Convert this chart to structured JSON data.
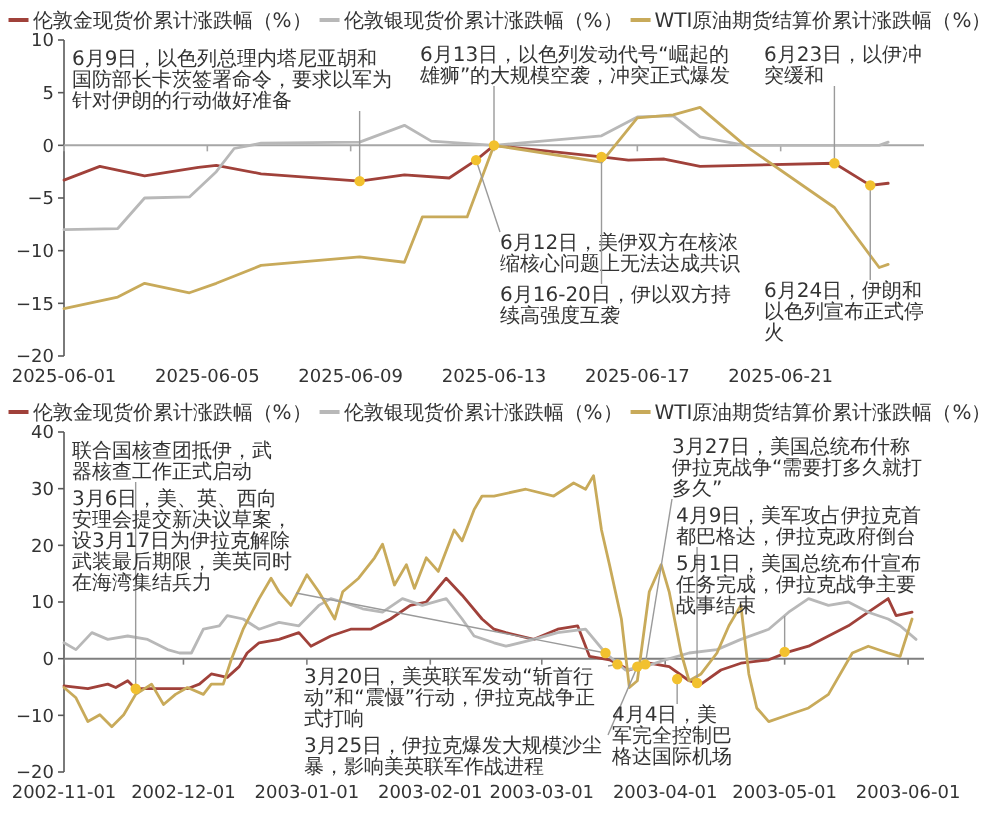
{
  "chart_data": [
    {
      "type": "line",
      "legend": "top",
      "xlim": [
        "2025-06-01",
        "2025-06-25"
      ],
      "ylim": [
        -20,
        10
      ],
      "xticks": [
        "2025-06-01",
        "2025-06-05",
        "2025-06-09",
        "2025-06-13",
        "2025-06-17",
        "2025-06-21"
      ],
      "yticks": [
        -20,
        -15,
        -10,
        -5,
        0,
        5,
        10
      ],
      "ref_lines": [
        {
          "axis": "y",
          "value": 0,
          "color": "#a6a6a6"
        }
      ],
      "series": [
        {
          "name": "伦敦金现货价累计涨跌幅（%）",
          "color": "#a0413a",
          "x": [
            "2025-06-01",
            "2025-06-02",
            "2025-06-03T06:00",
            "2025-06-04T18:00",
            "2025-06-05T06:00",
            "2025-06-06T12:00",
            "2025-06-09T06:00",
            "2025-06-10T12:00",
            "2025-06-11T18:00",
            "2025-06-12T12:00",
            "2025-06-13",
            "2025-06-16",
            "2025-06-16T18:00",
            "2025-06-17T18:00",
            "2025-06-18T18:00",
            "2025-06-22T12:00",
            "2025-06-23T12:00",
            "2025-06-24"
          ],
          "values": [
            -3.3,
            -2.0,
            -2.9,
            -2.1,
            -1.9,
            -2.7,
            -3.4,
            -2.8,
            -3.1,
            -1.4,
            0,
            -1.1,
            -1.4,
            -1.3,
            -2.0,
            -1.7,
            -3.8,
            -3.6
          ]
        },
        {
          "name": "伦敦银现货价累计涨跌幅（%）",
          "color": "#b8b8b8",
          "x": [
            "2025-06-01",
            "2025-06-02T12:00",
            "2025-06-03T06:00",
            "2025-06-04T12:00",
            "2025-06-05T06:00",
            "2025-06-05T18:00",
            "2025-06-06T12:00",
            "2025-06-09T06:00",
            "2025-06-10T12:00",
            "2025-06-11T06:00",
            "2025-06-13",
            "2025-06-16",
            "2025-06-17",
            "2025-06-18",
            "2025-06-18T18:00",
            "2025-06-20",
            "2025-06-23T18:00",
            "2025-06-24"
          ],
          "values": [
            -8.0,
            -7.9,
            -5.0,
            -4.9,
            -2.5,
            -0.3,
            0.2,
            0.3,
            1.9,
            0.4,
            0,
            0.9,
            2.7,
            2.8,
            0.8,
            0,
            0,
            0.3
          ]
        },
        {
          "name": "WTI原油期货结算价累计涨跌幅（%）",
          "color": "#c8aa5a",
          "x": [
            "2025-06-01",
            "2025-06-02T12:00",
            "2025-06-03T06:00",
            "2025-06-04T12:00",
            "2025-06-05T06:00",
            "2025-06-06T12:00",
            "2025-06-09T06:00",
            "2025-06-10T12:00",
            "2025-06-11",
            "2025-06-12T06:00",
            "2025-06-13",
            "2025-06-16",
            "2025-06-17",
            "2025-06-18",
            "2025-06-18T18:00",
            "2025-06-20",
            "2025-06-22T12:00",
            "2025-06-23T18:00",
            "2025-06-24"
          ],
          "values": [
            -15.5,
            -14.4,
            -13.1,
            -14.0,
            -13.1,
            -11.4,
            -10.6,
            -11.1,
            -6.8,
            -6.8,
            0,
            -1.6,
            2.6,
            2.9,
            3.6,
            0,
            -5.9,
            -11.6,
            -11.3
          ]
        }
      ],
      "annotations": [
        {
          "text": "6月9日，以色列总理内塔尼亚胡和国防部长卡茨签署命令，要求以军为针对伊朗的行动做好准备",
          "x": "2025-06-09T06:00",
          "y": -3.4
        },
        {
          "text": "6月12日，美伊双方在核浓缩核心问题上无法达成共识",
          "x": "2025-06-12T12:00",
          "y": -1.4
        },
        {
          "text": "6月13日，以色列发动代号“崛起的雄狮”的大规模空袭，冲突正式爆发",
          "x": "2025-06-13",
          "y": 0
        },
        {
          "text": "6月16-20日，伊以双方持续高强度互袭",
          "x": "2025-06-16",
          "y": -1.1
        },
        {
          "text": "6月23日，以伊冲突缓和",
          "x": "2025-06-22T12:00",
          "y": -1.7
        },
        {
          "text": "6月24日，伊朗和以色列宣布正式停火",
          "x": "2025-06-23T12:00",
          "y": -3.8
        }
      ]
    },
    {
      "type": "line",
      "legend": "top",
      "xlim": [
        "2002-11-01",
        "2003-06-05"
      ],
      "ylim": [
        -20,
        40
      ],
      "xticks": [
        "2002-11-01",
        "2002-12-01",
        "2003-01-01",
        "2003-02-01",
        "2003-03-01",
        "2003-04-01",
        "2003-05-01",
        "2003-06-01"
      ],
      "yticks": [
        -20,
        -10,
        0,
        10,
        20,
        30,
        40
      ],
      "ref_lines": [
        {
          "axis": "y",
          "value": 0,
          "color": "#7f7f7f"
        }
      ],
      "series": [
        {
          "name": "伦敦金现货价累计涨跌幅（%）",
          "color": "#a0413a",
          "x": [
            "2002-11-01",
            "2002-11-07",
            "2002-11-12",
            "2002-11-14",
            "2002-11-17",
            "2002-11-19",
            "2002-11-25",
            "2002-12-02",
            "2002-12-05",
            "2002-12-08",
            "2002-12-12",
            "2002-12-15",
            "2002-12-17",
            "2002-12-20",
            "2002-12-25",
            "2002-12-30",
            "2003-01-02",
            "2003-01-07",
            "2003-01-12",
            "2003-01-17",
            "2003-01-22",
            "2003-01-27",
            "2003-01-31",
            "2003-02-05",
            "2003-02-09",
            "2003-02-14",
            "2003-02-17",
            "2003-02-20",
            "2003-02-27",
            "2003-03-05",
            "2003-03-10",
            "2003-03-13",
            "2003-03-18",
            "2003-03-23",
            "2003-03-28",
            "2003-04-02",
            "2003-04-07",
            "2003-04-10",
            "2003-04-15",
            "2003-04-20",
            "2003-04-27",
            "2003-05-02",
            "2003-05-07",
            "2003-05-12",
            "2003-05-17",
            "2003-05-22",
            "2003-05-27",
            "2003-05-29",
            "2003-06-02"
          ],
          "values": [
            -4.8,
            -5.3,
            -4.5,
            -5.1,
            -3.9,
            -5.3,
            -5.3,
            -5.3,
            -4.5,
            -2.7,
            -3.3,
            -1.4,
            1,
            2.8,
            3.4,
            4.6,
            2.2,
            4,
            5.2,
            5.2,
            7,
            9.4,
            10,
            14.2,
            11.2,
            7,
            5.2,
            4.6,
            3.4,
            5.2,
            5.8,
            0.4,
            -0.2,
            -2,
            -0.8,
            -1.4,
            -3.9,
            -4.5,
            -2,
            -0.8,
            -0.2,
            1.2,
            2.2,
            4,
            5.8,
            8.2,
            10.6,
            7.6,
            8.2
          ]
        },
        {
          "name": "伦敦银现货价累计涨跌幅（%）",
          "color": "#b8b8b8",
          "x": [
            "2002-11-01",
            "2002-11-04",
            "2002-11-08",
            "2002-11-12",
            "2002-11-17",
            "2002-11-22",
            "2002-11-27",
            "2002-11-30",
            "2002-12-03",
            "2002-12-06",
            "2002-12-10",
            "2002-12-12",
            "2002-12-16",
            "2002-12-20",
            "2002-12-25",
            "2002-12-30",
            "2003-01-04",
            "2003-01-07",
            "2003-01-10",
            "2003-01-15",
            "2003-01-20",
            "2003-01-25",
            "2003-01-30",
            "2003-02-05",
            "2003-02-09",
            "2003-02-12",
            "2003-02-17",
            "2003-02-20",
            "2003-02-27",
            "2003-03-05",
            "2003-03-12",
            "2003-03-17",
            "2003-03-22",
            "2003-03-27",
            "2003-04-01",
            "2003-04-07",
            "2003-04-14",
            "2003-04-20",
            "2003-04-27",
            "2003-05-02",
            "2003-05-07",
            "2003-05-12",
            "2003-05-17",
            "2003-05-22",
            "2003-05-27",
            "2003-05-30",
            "2003-06-03"
          ],
          "values": [
            2.8,
            1.6,
            4.6,
            3.4,
            4,
            3.4,
            1.6,
            1,
            1,
            5.2,
            5.8,
            7.6,
            7,
            5.2,
            6.4,
            5.8,
            9.4,
            10.6,
            10,
            8.8,
            8.2,
            10.6,
            9.4,
            10.6,
            7,
            4,
            2.8,
            2.2,
            3.4,
            4.6,
            5.2,
            1,
            -2,
            -1.4,
            -0.2,
            1,
            1.6,
            3.4,
            5.2,
            8.2,
            10.6,
            9.4,
            10,
            8.2,
            7,
            5.8,
            3.4
          ]
        },
        {
          "name": "WTI原油期货结算价累计涨跌幅（%）",
          "color": "#c8aa5a",
          "x": [
            "2002-11-01",
            "2002-11-04",
            "2002-11-07",
            "2002-11-10",
            "2002-11-13",
            "2002-11-16",
            "2002-11-19",
            "2002-11-23",
            "2002-11-26",
            "2002-11-29",
            "2002-12-02",
            "2002-12-06",
            "2002-12-08",
            "2002-12-11",
            "2002-12-13",
            "2002-12-16",
            "2002-12-20",
            "2002-12-23",
            "2002-12-25",
            "2002-12-28",
            "2003-01-01",
            "2003-01-04",
            "2003-01-08",
            "2003-01-10",
            "2003-01-14",
            "2003-01-18",
            "2003-01-20",
            "2003-01-23",
            "2003-01-26",
            "2003-01-28",
            "2003-01-31",
            "2003-02-03",
            "2003-02-07",
            "2003-02-09",
            "2003-02-12",
            "2003-02-14",
            "2003-02-17",
            "2003-02-25",
            "2003-03-04",
            "2003-03-09",
            "2003-03-12",
            "2003-03-14",
            "2003-03-16",
            "2003-03-18",
            "2003-03-21",
            "2003-03-23",
            "2003-03-25",
            "2003-03-28",
            "2003-03-31",
            "2003-04-02",
            "2003-04-05",
            "2003-04-07",
            "2003-04-10",
            "2003-04-14",
            "2003-04-17",
            "2003-04-20",
            "2003-04-22",
            "2003-04-24",
            "2003-04-27",
            "2003-05-02",
            "2003-05-07",
            "2003-05-12",
            "2003-05-18",
            "2003-05-22",
            "2003-05-27",
            "2003-05-30",
            "2003-06-02"
          ],
          "values": [
            -5.1,
            -6.9,
            -11.1,
            -9.9,
            -12,
            -9.9,
            -6.3,
            -4.5,
            -8.1,
            -6.3,
            -5.1,
            -6.3,
            -4.5,
            -4.5,
            -0.2,
            5.2,
            10.6,
            14.2,
            11.8,
            9.4,
            14.8,
            11.8,
            7,
            11.8,
            14.2,
            17.8,
            20.2,
            13,
            16.6,
            12.4,
            17.8,
            15.4,
            22.7,
            20.8,
            26.3,
            28.7,
            28.7,
            29.9,
            28.7,
            31,
            29.9,
            32.3,
            22.7,
            16.6,
            7,
            -5.1,
            -3.9,
            11.8,
            16.6,
            11.8,
            1,
            -3.9,
            -2.7,
            1,
            5.8,
            9.4,
            -2.7,
            -8.7,
            -11.1,
            -9.9,
            -8.7,
            -6.3,
            1,
            2.2,
            1,
            0.4,
            7
          ]
        }
      ],
      "annotations": [
        {
          "text": "联合国核查团抵伊，武器核查工作正式启动",
          "x": "2002-11-19",
          "y": -5.3
        },
        {
          "text": "3月6日，美、英、西向安理会提交新决议草案，设3月17日为伊拉克解除武装最后期限，美英同时在海湾集结兵力",
          "x": "2003-03-17",
          "y": 1.0
        },
        {
          "text": "3月20日，美英联军发动“斩首行动”和“震慑”行动，伊拉克战争正式打响",
          "x": "2003-03-20",
          "y": -1.0
        },
        {
          "text": "3月25日，伊拉克爆发大规模沙尘暴，影响美英联军作战进程",
          "x": "2003-03-25",
          "y": -1.4
        },
        {
          "text": "3月27日，美国总统布什称伊拉克战争“需要打多久就打多久”",
          "x": "2003-03-27",
          "y": -1.0
        },
        {
          "text": "4月4日，美军完全控制巴格达国际机场",
          "x": "2003-04-04",
          "y": -3.6
        },
        {
          "text": "4月9日，美军攻占伊拉克首都巴格达，伊拉克政府倒台",
          "x": "2003-04-09",
          "y": -4.3
        },
        {
          "text": "5月1日，美国总统布什宣布任务完成，伊拉克战争主要战事结束",
          "x": "2003-05-01",
          "y": 1.2
        }
      ]
    }
  ]
}
